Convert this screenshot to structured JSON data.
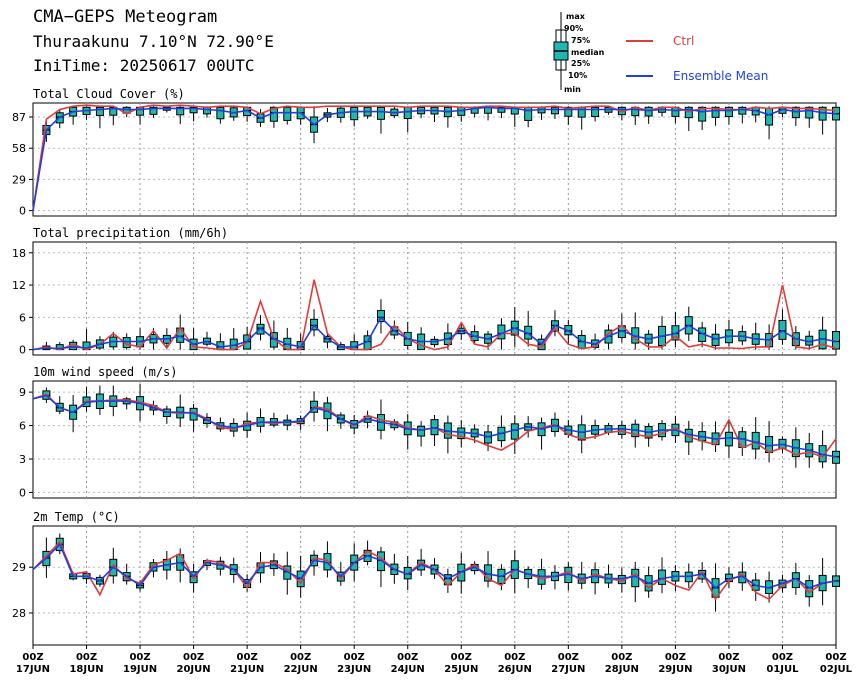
{
  "header": {
    "title": "CMA−GEPS Meteogram",
    "location": "Thuraakunu 7.10°N 72.90°E",
    "init_time": "IniTime: 20250617 00UTC"
  },
  "legend": {
    "box_labels": [
      "max",
      "90%",
      "75%",
      "median",
      "25%",
      "10%",
      "min"
    ],
    "ctrl_label": "Ctrl",
    "mean_label": "Ensemble Mean",
    "colors": {
      "ctrl": "#e03c3c",
      "mean": "#1f3fe0",
      "box": "#1fb8b0"
    }
  },
  "x_axis": {
    "hour_label": "00Z",
    "day_labels": [
      "17JUN",
      "18JUN",
      "19JUN",
      "20JUN",
      "21JUN",
      "22JUN",
      "23JUN",
      "24JUN",
      "25JUN",
      "26JUN",
      "27JUN",
      "28JUN",
      "29JUN",
      "30JUN",
      "01JUL",
      "02JUL"
    ],
    "step_hours": 6,
    "num_steps": 60
  },
  "chart_data": [
    {
      "type": "line",
      "title": "Total Cloud Cover (%)",
      "yticks": [
        0,
        29,
        58,
        87
      ],
      "ylim": [
        -5,
        100
      ],
      "grid": true,
      "series": [
        {
          "name": "Ctrl",
          "values": [
            0,
            85,
            94,
            97,
            98,
            97,
            97,
            90,
            96,
            98,
            97,
            98,
            97,
            96,
            97,
            97,
            96,
            90,
            95,
            97,
            96,
            96,
            97,
            97,
            97,
            97,
            97,
            97,
            96,
            97,
            97,
            97,
            96,
            96,
            97,
            97,
            96,
            96,
            96,
            97,
            95,
            96,
            97,
            97,
            92,
            96,
            93,
            96,
            96,
            92,
            95,
            95,
            94,
            94,
            96,
            95,
            96,
            95,
            95,
            94,
            93
          ]
        },
        {
          "name": "Ensemble Mean",
          "values": [
            0,
            75,
            87,
            92,
            93,
            94,
            95,
            94,
            94,
            95,
            95,
            95,
            95,
            94,
            93,
            91,
            93,
            86,
            91,
            91,
            91,
            80,
            89,
            91,
            92,
            92,
            92,
            91,
            92,
            93,
            93,
            92,
            93,
            95,
            96,
            95,
            95,
            93,
            94,
            94,
            94,
            94,
            94,
            94,
            94,
            94,
            93,
            94,
            93,
            94,
            92,
            93,
            93,
            94,
            93,
            89,
            94,
            92,
            93,
            91,
            90
          ]
        }
      ]
    },
    {
      "type": "line",
      "title": "Total precipitation (mm/6h)",
      "yticks": [
        0,
        6,
        12,
        18
      ],
      "ylim": [
        -1,
        20
      ],
      "grid": true,
      "series": [
        {
          "name": "Ctrl",
          "values": [
            0,
            0.5,
            0,
            1,
            0,
            1,
            3,
            1,
            0.5,
            3.5,
            0.3,
            4,
            0.5,
            0.3,
            0,
            0,
            1.3,
            9,
            2,
            0,
            0,
            13,
            3,
            0.5,
            0,
            0,
            1,
            4.5,
            2,
            0.8,
            0,
            0.5,
            5,
            1,
            0.5,
            3,
            3,
            1,
            0.5,
            4,
            1,
            0.2,
            0.5,
            3,
            4.5,
            2,
            0.5,
            0.5,
            2.5,
            0.5,
            1,
            0.3,
            0.3,
            0.2,
            0.5,
            0.5,
            12,
            0.5,
            0.2,
            1,
            0.2
          ]
        },
        {
          "name": "Ensemble Mean",
          "values": [
            0,
            0.3,
            0.2,
            0.5,
            0.3,
            1,
            1.5,
            1.5,
            1.5,
            2,
            2,
            2.5,
            1,
            1.5,
            0.5,
            0.8,
            1.5,
            4,
            2,
            1,
            0.5,
            4.5,
            2,
            0.5,
            0.5,
            1.5,
            6,
            3.5,
            2,
            1.5,
            1.5,
            2,
            3.5,
            2.5,
            2,
            3,
            4,
            3,
            1,
            4.5,
            3.5,
            1.5,
            1,
            2.5,
            3.5,
            2.5,
            2,
            2.5,
            3,
            4.5,
            3,
            2,
            2.5,
            2.5,
            2,
            1.8,
            3.5,
            2,
            1.5,
            2,
            1.5
          ]
        }
      ]
    },
    {
      "type": "line",
      "title": "10m wind speed (m/s)",
      "yticks": [
        0,
        3,
        6,
        9
      ],
      "ylim": [
        -0.5,
        10
      ],
      "grid": true,
      "series": [
        {
          "name": "Ctrl",
          "values": [
            8.4,
            8.8,
            7.6,
            7.2,
            8.2,
            8.2,
            8.3,
            8.3,
            8.1,
            7.8,
            7.2,
            7.1,
            7.2,
            6.6,
            5.8,
            5.7,
            6.2,
            6.3,
            6.2,
            6.3,
            6.3,
            7.7,
            7.5,
            6.6,
            6.0,
            6.9,
            6.5,
            6.3,
            5.8,
            5.6,
            5.8,
            5.2,
            5.0,
            4.7,
            4.2,
            3.8,
            4.5,
            5.5,
            5.8,
            6.1,
            5.2,
            4.8,
            5.0,
            5.4,
            5.5,
            5.2,
            5.0,
            5.3,
            5.8,
            5.0,
            4.6,
            4.3,
            6.5,
            4.0,
            4.5,
            3.6,
            4.0,
            3.4,
            3.6,
            3.2,
            4.8
          ]
        },
        {
          "name": "Ensemble Mean",
          "values": [
            8.4,
            8.7,
            7.6,
            7.2,
            8.1,
            8.2,
            8.2,
            8.2,
            8.0,
            7.6,
            7.2,
            7.2,
            7.1,
            6.5,
            6.0,
            5.8,
            6.0,
            6.3,
            6.3,
            6.3,
            6.4,
            7.6,
            7.3,
            6.6,
            6.1,
            6.6,
            6.3,
            6.1,
            5.7,
            5.6,
            5.8,
            5.5,
            5.4,
            5.3,
            5.0,
            5.3,
            5.6,
            5.9,
            5.7,
            6.0,
            5.6,
            5.4,
            5.6,
            5.7,
            5.7,
            5.6,
            5.4,
            5.6,
            5.6,
            5.2,
            5.0,
            4.8,
            4.9,
            4.8,
            4.5,
            4.2,
            4.3,
            4.0,
            3.8,
            3.4,
            3.2
          ]
        }
      ]
    },
    {
      "type": "line",
      "title": "2m Temp (°C)",
      "yticks": [
        28,
        29
      ],
      "ylim": [
        27.3,
        29.9
      ],
      "grid": true,
      "series": [
        {
          "name": "Ctrl",
          "values": [
            28.95,
            29.25,
            29.55,
            28.85,
            28.9,
            28.4,
            29.05,
            28.75,
            28.65,
            29.05,
            29.15,
            29.3,
            28.75,
            29.15,
            29.1,
            28.95,
            28.55,
            29.1,
            29.1,
            28.95,
            28.65,
            29.2,
            29.15,
            28.75,
            29.1,
            29.35,
            29.2,
            28.95,
            28.85,
            29.1,
            28.95,
            28.6,
            28.9,
            29.05,
            28.75,
            28.6,
            28.95,
            28.85,
            28.75,
            28.8,
            28.9,
            28.7,
            28.85,
            28.75,
            28.7,
            28.85,
            28.55,
            28.75,
            28.6,
            28.5,
            28.9,
            28.3,
            28.7,
            28.85,
            28.45,
            28.3,
            28.6,
            28.75,
            28.45,
            28.65,
            28.7
          ]
        },
        {
          "name": "Ensemble Mean",
          "values": [
            28.95,
            29.2,
            29.5,
            28.8,
            28.8,
            28.7,
            29.0,
            28.8,
            28.6,
            29.0,
            29.05,
            29.1,
            28.8,
            29.1,
            29.05,
            28.95,
            28.65,
            29.0,
            29.05,
            28.9,
            28.75,
            29.15,
            29.1,
            28.8,
            29.1,
            29.25,
            29.15,
            28.95,
            28.85,
            29.05,
            28.95,
            28.75,
            28.9,
            29.0,
            28.85,
            28.8,
            28.95,
            28.85,
            28.8,
            28.8,
            28.85,
            28.75,
            28.8,
            28.75,
            28.75,
            28.8,
            28.65,
            28.75,
            28.8,
            28.8,
            28.85,
            28.55,
            28.75,
            28.8,
            28.6,
            28.55,
            28.65,
            28.75,
            28.55,
            28.65,
            28.7
          ]
        }
      ]
    }
  ]
}
